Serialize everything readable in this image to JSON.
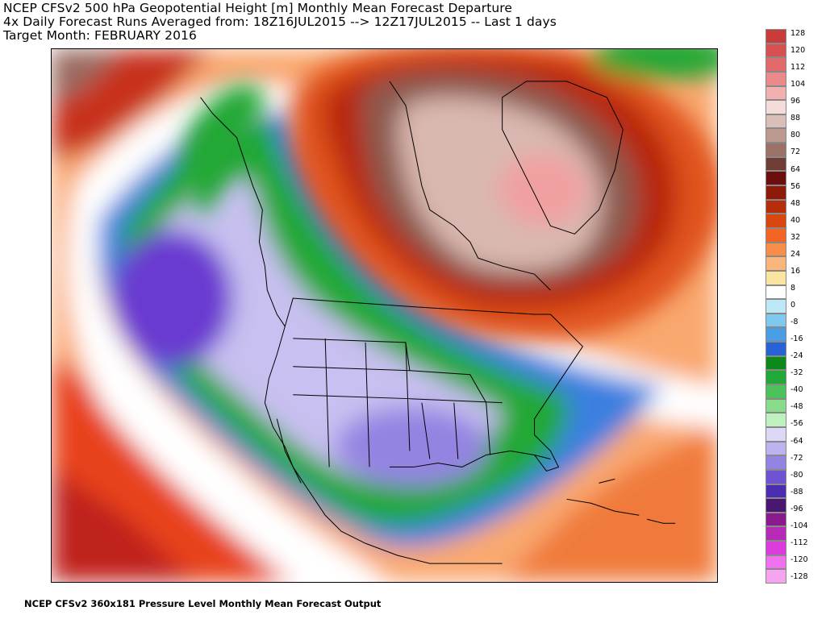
{
  "header": {
    "line1": "NCEP CFSv2 500 hPa Geopotential Height [m] Monthly Mean Forecast Departure",
    "line2": "4x Daily Forecast Runs Averaged from: 18Z16JUL2015 --> 12Z17JUL2015 -- Last 1 days",
    "line3": "Target Month: FEBRUARY 2016"
  },
  "footer": {
    "text": "NCEP CFSv2 360x181 Pressure Level Monthly Mean Forecast Output"
  },
  "colorbar": {
    "labels": [
      "128",
      "120",
      "112",
      "104",
      "96",
      "88",
      "80",
      "72",
      "64",
      "56",
      "48",
      "40",
      "32",
      "24",
      "16",
      "8",
      "0",
      "-8",
      "-16",
      "-24",
      "-32",
      "-40",
      "-48",
      "-56",
      "-64",
      "-72",
      "-80",
      "-88",
      "-96",
      "-104",
      "-112",
      "-120",
      "-128"
    ],
    "colors": [
      "#c83c3c",
      "#d85050",
      "#e26a6a",
      "#eb8a8a",
      "#f3b0b0",
      "#f6dcd8",
      "#d9bfb8",
      "#bc9a90",
      "#9c7268",
      "#6f3d34",
      "#6d0e0e",
      "#8e1a0a",
      "#b52d09",
      "#d9470f",
      "#f26524",
      "#f78f4a",
      "#f9b57a",
      "#fbe3a0",
      "#ffffff",
      "#bfe8f6",
      "#7fc9ee",
      "#4a9ee6",
      "#2763d6",
      "#0b8a1a",
      "#22a836",
      "#4ec25a",
      "#86dc8a",
      "#bff0bf",
      "#ddd8f5",
      "#bbb4ee",
      "#9484e2",
      "#6e52d2",
      "#4b2db2",
      "#4a1770",
      "#8a1a8e",
      "#b62ab6",
      "#dc3bdc",
      "#f070f0",
      "#f7a4f0"
    ]
  },
  "map": {
    "region": "North America",
    "field_colors": {
      "strong_pos": "#f3a8a8",
      "pos_brown": "#8a5a50",
      "pos_red": "#c01c0c",
      "pos_orange": "#f26524",
      "zero": "#ffffff",
      "neg_blue": "#3a7de0",
      "neg_green": "#20a030",
      "neg_lav": "#c8c0f0",
      "neg_purple": "#6a3ad0",
      "strong_neg": "#6a1478"
    }
  }
}
